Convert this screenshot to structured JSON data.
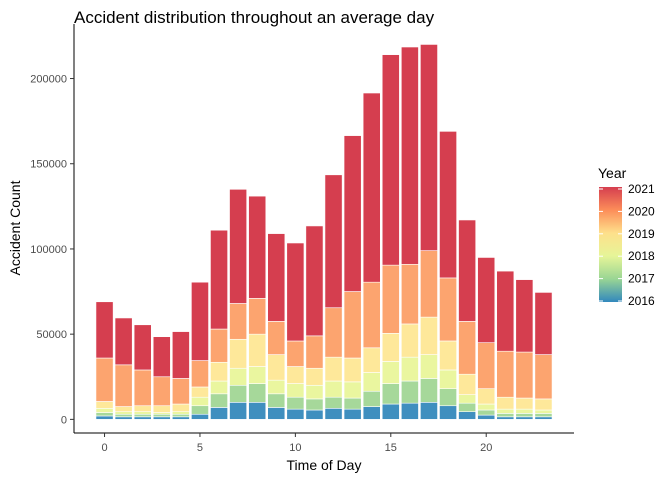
{
  "chart_data": {
    "type": "bar",
    "stacked": true,
    "title": "Accident distribution throughout an average day",
    "xlabel": "Time of Day",
    "ylabel": "Accident Count",
    "x": [
      0,
      1,
      2,
      3,
      4,
      5,
      6,
      7,
      8,
      9,
      10,
      11,
      12,
      13,
      14,
      15,
      16,
      17,
      18,
      19,
      20,
      21,
      22,
      23
    ],
    "xticks": [
      0,
      5,
      10,
      15,
      20
    ],
    "xtick_labels": [
      "0",
      "5",
      "10",
      "15",
      "20"
    ],
    "yticks": [
      0,
      50000,
      100000,
      150000,
      200000
    ],
    "ytick_labels": [
      "0",
      "50000",
      "100000",
      "150000",
      "200000"
    ],
    "xlim": [
      -1.6,
      24.6
    ],
    "ylim": [
      -8000,
      232000
    ],
    "grid": false,
    "legend": {
      "title": "Year",
      "position": "right",
      "labels": [
        "2021",
        "2020",
        "2019",
        "2018",
        "2017",
        "2016"
      ],
      "gradient": [
        "#3288BD",
        "#99D594",
        "#E6F598",
        "#FEE08B",
        "#FC8D59",
        "#D53E4F"
      ]
    },
    "series": [
      {
        "name": "2016",
        "color": "#3F8FBF",
        "values": [
          2000,
          1500,
          1500,
          1500,
          1500,
          3000,
          7000,
          10000,
          10000,
          7000,
          6000,
          5500,
          6500,
          6000,
          7500,
          9000,
          9500,
          10000,
          8000,
          4500,
          2500,
          1500,
          1500,
          1500
        ]
      },
      {
        "name": "2017",
        "color": "#A6D89A",
        "values": [
          2000,
          1500,
          1500,
          1500,
          1500,
          5000,
          8000,
          10000,
          11000,
          8000,
          7000,
          6500,
          6500,
          6500,
          9000,
          12000,
          13000,
          14000,
          10000,
          5000,
          3000,
          2000,
          2000,
          2000
        ]
      },
      {
        "name": "2018",
        "color": "#EAF69F",
        "values": [
          2500,
          1500,
          1500,
          1000,
          1500,
          5000,
          7500,
          10000,
          10000,
          8000,
          8000,
          8000,
          9500,
          9500,
          11000,
          13000,
          14000,
          14000,
          11000,
          5000,
          3500,
          2500,
          2500,
          2000
        ]
      },
      {
        "name": "2019",
        "color": "#FEE89A",
        "values": [
          4000,
          3000,
          3500,
          4000,
          4500,
          6000,
          11000,
          17000,
          19000,
          15000,
          10000,
          10000,
          14000,
          14000,
          14500,
          16500,
          19500,
          22000,
          17000,
          12000,
          9000,
          7000,
          6500,
          6500
        ]
      },
      {
        "name": "2020",
        "color": "#FCA46F",
        "values": [
          25500,
          24500,
          21000,
          17000,
          15000,
          15500,
          19500,
          21000,
          21000,
          19500,
          15000,
          19000,
          29000,
          39000,
          38500,
          40000,
          35000,
          39000,
          37000,
          31000,
          27000,
          27000,
          27000,
          26000
        ]
      },
      {
        "name": "2021",
        "color": "#D53E4F",
        "values": [
          33000,
          27500,
          26500,
          23500,
          27500,
          46000,
          58000,
          67000,
          60000,
          51500,
          57500,
          64500,
          78000,
          91500,
          111000,
          123500,
          127500,
          121000,
          86000,
          59500,
          50000,
          47000,
          42500,
          36500
        ]
      }
    ]
  }
}
